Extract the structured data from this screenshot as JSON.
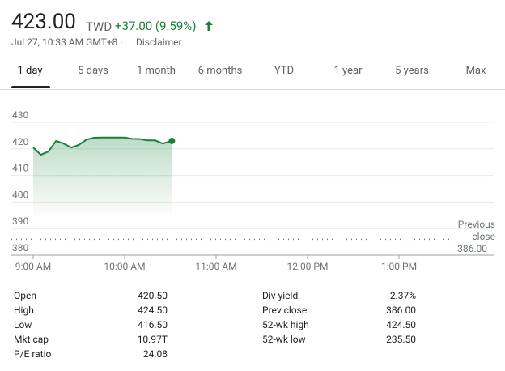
{
  "header": {
    "price": "423.00",
    "currency": "TWD",
    "change": "+37.00 (9.59%)",
    "timestamp": "Jul 27, 10:33 AM GMT+8 ·",
    "disclaimer": "Disclaimer"
  },
  "tabs": [
    "1 day",
    "5 days",
    "1 month",
    "6 months",
    "YTD",
    "1 year",
    "5 years",
    "Max"
  ],
  "chart_data": {
    "type": "line",
    "color": "#188038",
    "x": [
      540,
      545,
      550,
      555,
      560,
      565,
      570,
      575,
      580,
      585,
      590,
      595,
      600,
      605,
      610,
      615,
      620,
      625,
      631
    ],
    "values": [
      420.5,
      417.8,
      419,
      423,
      422,
      420.5,
      421.5,
      423.5,
      424.2,
      424.3,
      424.3,
      424.3,
      424.3,
      423.8,
      423.7,
      423.2,
      423.2,
      422,
      423
    ],
    "xlim": [
      540,
      810
    ],
    "xticks": [
      {
        "value": 540,
        "label": "9:00 AM"
      },
      {
        "value": 600,
        "label": "10:00 AM"
      },
      {
        "value": 660,
        "label": "11:00 AM"
      },
      {
        "value": 720,
        "label": "12:00 PM"
      },
      {
        "value": 780,
        "label": "1:00 PM"
      }
    ],
    "ylim": [
      380,
      430
    ],
    "yticks": [
      380,
      390,
      400,
      410,
      420,
      430
    ],
    "grid": true,
    "reference_line": {
      "value": 386,
      "label": "Previous close",
      "value_label": "386.00"
    }
  },
  "stats": {
    "left": [
      [
        "Open",
        "420.50"
      ],
      [
        "High",
        "424.50"
      ],
      [
        "Low",
        "416.50"
      ],
      [
        "Mkt cap",
        "10.97T"
      ],
      [
        "P/E ratio",
        "24.08"
      ]
    ],
    "right": [
      [
        "Div yield",
        "2.37%"
      ],
      [
        "Prev close",
        "386.00"
      ],
      [
        "52-wk high",
        "424.50"
      ],
      [
        "52-wk low",
        "235.50"
      ]
    ]
  }
}
